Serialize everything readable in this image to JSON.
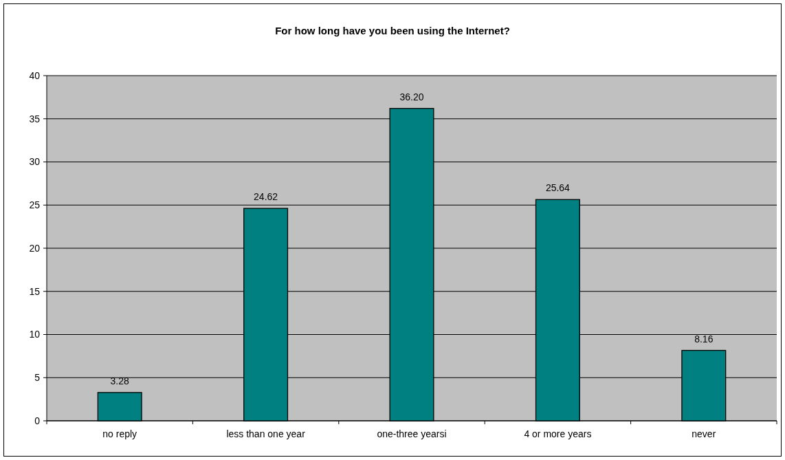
{
  "chart_data": {
    "type": "bar",
    "title": "For how long have you been using the Internet?",
    "categories": [
      "no reply",
      "less than one year",
      "one-three yearsi",
      "4 or more years",
      "never"
    ],
    "values": [
      3.28,
      24.62,
      36.2,
      25.64,
      8.16
    ],
    "value_labels": [
      "3.28",
      "24.62",
      "36.20",
      "25.64",
      "8.16"
    ],
    "color": "#008080",
    "ylim": [
      0,
      40
    ],
    "yticks": [
      0,
      5,
      10,
      15,
      20,
      25,
      30,
      35,
      40
    ],
    "grid": "y"
  }
}
